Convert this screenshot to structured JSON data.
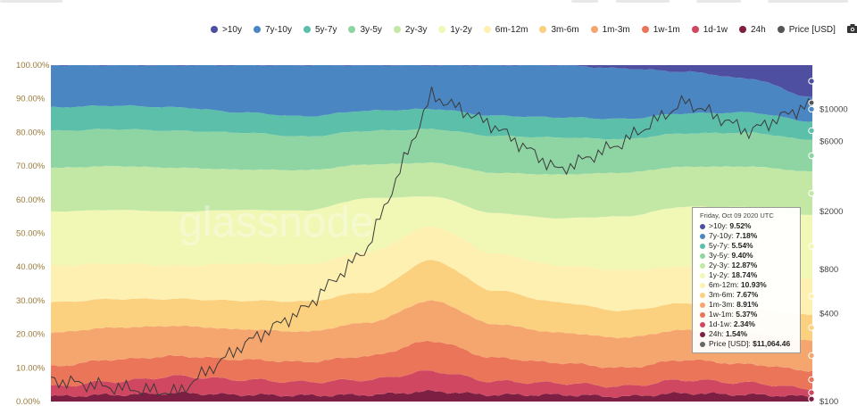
{
  "legend": [
    {
      "label": ">10y",
      "color": "#4e4fa0"
    },
    {
      "label": "7y-10y",
      "color": "#4a86c1"
    },
    {
      "label": "5y-7y",
      "color": "#5bbfa9"
    },
    {
      "label": "3y-5y",
      "color": "#8fd5a3"
    },
    {
      "label": "2y-3y",
      "color": "#c3e8a5"
    },
    {
      "label": "1y-2y",
      "color": "#f1f7b5"
    },
    {
      "label": "6m-12m",
      "color": "#fdf0b0"
    },
    {
      "label": "3m-6m",
      "color": "#fbd07f"
    },
    {
      "label": "1m-3m",
      "color": "#f5a66f"
    },
    {
      "label": "1w-1m",
      "color": "#ea7559"
    },
    {
      "label": "1d-1w",
      "color": "#cf4760"
    },
    {
      "label": "24h",
      "color": "#7c1f43"
    },
    {
      "label": "Price [USD]",
      "color": "#555555"
    }
  ],
  "camera_icon": "camera-icon",
  "chart_data": {
    "type": "area",
    "stacked": true,
    "yaxis_left": {
      "ticks": [
        "0.00%",
        "10.00%",
        "20.00%",
        "30.00%",
        "40.00%",
        "50.00%",
        "60.00%",
        "70.00%",
        "80.00%",
        "90.00%",
        "100.00%"
      ],
      "range": [
        0,
        100
      ]
    },
    "yaxis_right": {
      "ticks": [
        "$100",
        "$400",
        "$800",
        "$2000",
        "$6000",
        "$10000"
      ],
      "scale": "log"
    },
    "x": [
      0,
      1,
      2,
      3,
      4,
      5,
      6,
      7,
      8,
      9,
      10,
      11,
      12
    ],
    "series": [
      {
        "name": "24h",
        "values": [
          1.5,
          2.0,
          2.5,
          2.0,
          1.8,
          2.0,
          3.0,
          2.0,
          2.0,
          1.5,
          2.5,
          2.0,
          1.5
        ]
      },
      {
        "name": "1d-1w",
        "values": [
          3.0,
          4.0,
          5.0,
          4.5,
          4.0,
          4.5,
          6.0,
          4.0,
          3.5,
          3.0,
          4.0,
          3.5,
          2.3
        ]
      },
      {
        "name": "1w-1m",
        "values": [
          6.0,
          6.5,
          6.0,
          6.0,
          6.0,
          7.0,
          9.0,
          7.0,
          6.0,
          5.5,
          6.0,
          5.5,
          5.4
        ]
      },
      {
        "name": "1m-3m",
        "values": [
          10.0,
          9.5,
          9.0,
          9.0,
          9.0,
          10.0,
          12.0,
          10.0,
          9.0,
          9.0,
          9.0,
          9.0,
          8.9
        ]
      },
      {
        "name": "3m-6m",
        "values": [
          9.0,
          8.5,
          8.0,
          8.5,
          9.0,
          9.0,
          12.0,
          10.0,
          9.0,
          8.0,
          8.0,
          7.5,
          7.7
        ]
      },
      {
        "name": "6m-12m",
        "values": [
          11.0,
          10.5,
          10.0,
          11.0,
          11.0,
          12.0,
          10.0,
          11.0,
          11.0,
          12.0,
          11.0,
          11.0,
          10.9
        ]
      },
      {
        "name": "1y-2y",
        "values": [
          16.0,
          16.0,
          16.0,
          16.0,
          16.0,
          16.0,
          9.0,
          12.0,
          14.0,
          16.0,
          18.0,
          19.0,
          18.7
        ]
      },
      {
        "name": "2y-3y",
        "values": [
          13.0,
          13.0,
          13.0,
          12.0,
          12.0,
          10.0,
          10.0,
          12.0,
          13.0,
          13.0,
          12.0,
          12.0,
          12.9
        ]
      },
      {
        "name": "3y-5y",
        "values": [
          11.0,
          11.0,
          11.0,
          11.0,
          10.0,
          10.0,
          10.0,
          11.0,
          11.0,
          10.0,
          10.0,
          10.0,
          9.4
        ]
      },
      {
        "name": "5y-7y",
        "values": [
          7.0,
          7.0,
          7.0,
          6.0,
          6.0,
          6.0,
          6.0,
          6.0,
          6.0,
          6.0,
          6.0,
          6.0,
          5.5
        ]
      },
      {
        "name": "7y-10y",
        "values": [
          12.5,
          12.0,
          12.5,
          14.0,
          15.2,
          13.5,
          13.0,
          15.0,
          15.5,
          15.0,
          12.5,
          10.0,
          7.2
        ]
      },
      {
        "name": ">10y",
        "values": [
          0.0,
          0.0,
          0.0,
          0.0,
          0.0,
          0.0,
          0.0,
          0.0,
          0.0,
          1.0,
          2.0,
          4.0,
          9.5
        ]
      }
    ],
    "price_series": {
      "name": "Price [USD]",
      "values": [
        140,
        125,
        115,
        240,
        430,
        1150,
        12500,
        7600,
        3800,
        5900,
        11300,
        7000,
        11064
      ]
    }
  },
  "tooltip": {
    "date": "Friday, Oct 09 2020 UTC",
    "rows": [
      {
        "label": ">10y:",
        "value": "9.52%",
        "color": "#4e4fa0"
      },
      {
        "label": "7y-10y:",
        "value": "7.18%",
        "color": "#4a86c1"
      },
      {
        "label": "5y-7y:",
        "value": "5.54%",
        "color": "#5bbfa9"
      },
      {
        "label": "3y-5y:",
        "value": "9.40%",
        "color": "#8fd5a3"
      },
      {
        "label": "2y-3y:",
        "value": "12.87%",
        "color": "#c3e8a5"
      },
      {
        "label": "1y-2y:",
        "value": "18.74%",
        "color": "#f1f7b5"
      },
      {
        "label": "6m-12m:",
        "value": "10.93%",
        "color": "#fdf0b0"
      },
      {
        "label": "3m-6m:",
        "value": "7.67%",
        "color": "#fbd07f"
      },
      {
        "label": "1m-3m:",
        "value": "8.91%",
        "color": "#f5a66f"
      },
      {
        "label": "1w-1m:",
        "value": "5.37%",
        "color": "#ea7559"
      },
      {
        "label": "1d-1w:",
        "value": "2.34%",
        "color": "#cf4760"
      },
      {
        "label": "24h:",
        "value": "1.54%",
        "color": "#7c1f43"
      },
      {
        "label": "Price [USD]:",
        "value": "$11,064.46",
        "color": "#666666"
      }
    ]
  },
  "watermark": "glassnode"
}
